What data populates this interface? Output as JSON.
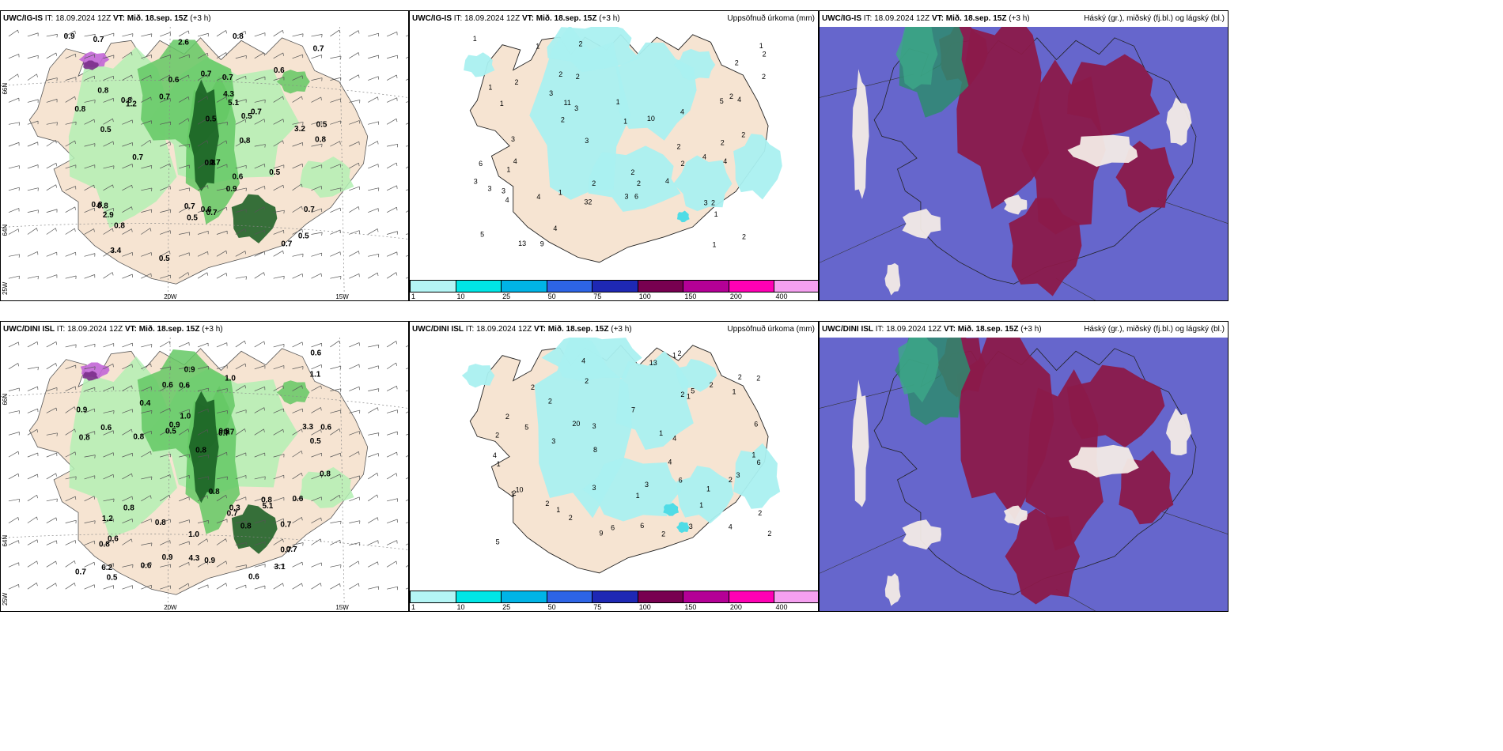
{
  "rows": [
    {
      "model_name": "UWC/IG-IS",
      "it_label": "IT:",
      "it_value": "18.09.2024 12Z",
      "vt_label": "VT:",
      "vt_value": "Mið. 18.sep. 15Z",
      "lead": "(+3 h)",
      "wind_panel": {
        "values": [
          "0.9",
          "0.6",
          "0.8",
          "0.5",
          "0.7",
          "0.8",
          "0.7",
          "0.6",
          "0.8",
          "0.7",
          "0.9",
          "1.2",
          "0.8",
          "0.6",
          "0.7",
          "0.8",
          "4.3",
          "0.8",
          "0.7",
          "0.5",
          "0.8",
          "0.7",
          "0.5",
          "0.7",
          "0.5",
          "0.7",
          "0.5",
          "0.8",
          "0.7",
          "5.1",
          "3.4",
          "0.7",
          "0.8",
          "2.9",
          "2.6",
          "3.2",
          "0.5",
          "0.7",
          "0.5",
          "0.7",
          "0.8",
          "0.5",
          "0.6"
        ],
        "lat_labels": [
          "66N",
          "64N",
          "25W"
        ],
        "lon_labels": [
          "20W",
          "15W"
        ]
      },
      "precip_panel": {
        "title_right": "Uppsöfnuð úrkoma (mm)",
        "values": [
          "1",
          "1",
          "1",
          "2",
          "2",
          "1",
          "1",
          "1",
          "2",
          "2",
          "2",
          "1",
          "3",
          "3",
          "2",
          "2",
          "3",
          "3",
          "4",
          "3",
          "4",
          "2",
          "4",
          "9",
          "4",
          "2",
          "1",
          "3",
          "2",
          "6",
          "13",
          "2",
          "1",
          "4",
          "2",
          "10",
          "2",
          "11",
          "4",
          "5",
          "3",
          "2",
          "1",
          "3",
          "2",
          "5",
          "2",
          "4",
          "3",
          "32",
          "2",
          "1",
          "4",
          "6",
          "2",
          "4"
        ]
      },
      "cloud_panel": {
        "title_right": "Háský (gr.), miðský (fj.bl.) og lágský (bl.)"
      }
    },
    {
      "model_name": "UWC/DINI ISL",
      "it_label": "IT:",
      "it_value": "18.09.2024 12Z",
      "vt_label": "VT:",
      "vt_value": "Mið. 18.sep. 15Z",
      "lead": "(+3 h)",
      "wind_panel": {
        "values": [
          "0.6",
          "0.8",
          "0.8",
          "0.6",
          "0.8",
          "1.2",
          "0.3",
          "0.9",
          "0.8",
          "0.7",
          "0.8",
          "0.6",
          "0.9",
          "0.7",
          "1.0",
          "0.5",
          "0.8",
          "0.9",
          "1.1",
          "0.6",
          "0.8",
          "0.7",
          "0.7",
          "1.0",
          "5.1",
          "0.8",
          "3.1",
          "3.3",
          "1.0",
          "0.4",
          "4.3",
          "0.8",
          "0.6",
          "0.6",
          "0.6",
          "0.6",
          "6.2",
          "0.5",
          "0.9",
          "0.9",
          "0.8",
          "0.7",
          "0.5",
          "0.7",
          "0.6",
          "0.7",
          "0.8"
        ],
        "lat_labels": [
          "66N",
          "64N",
          "25W"
        ],
        "lon_labels": [
          "20W",
          "15W"
        ]
      },
      "precip_panel": {
        "title_right": "Uppsöfnuð úrkoma (mm)",
        "values": [
          "1",
          "1",
          "1",
          "2",
          "1",
          "2",
          "2",
          "1",
          "2",
          "1",
          "2",
          "1",
          "2",
          "2",
          "3",
          "3",
          "2",
          "2",
          "4",
          "5",
          "2",
          "4",
          "4",
          "6",
          "13",
          "4",
          "2",
          "1",
          "8",
          "1",
          "5",
          "2",
          "2",
          "10",
          "6",
          "3",
          "2",
          "3",
          "20",
          "7",
          "1",
          "9",
          "6",
          "6",
          "6",
          "5",
          "3",
          "2",
          "2",
          "3",
          "2",
          "1",
          "4"
        ]
      },
      "cloud_panel": {
        "title_right": "Háský (gr.), miðský (fj.bl.) og lágský (bl.)"
      }
    }
  ],
  "legend": {
    "ticks": [
      "1",
      "10",
      "25",
      "50",
      "75",
      "100",
      "150",
      "200",
      "400"
    ],
    "colors": [
      "#b4f5f5",
      "#00e6e6",
      "#00b4e6",
      "#2d64e6",
      "#1e28b4",
      "#780050",
      "#b40096",
      "#ff00b4",
      "#f5a0f0"
    ]
  },
  "colors": {
    "land": "#f6e4d2",
    "sea": "#ffffff",
    "precip_light": "#aaf0f0",
    "precip_mid": "#50dce6",
    "green_light": "#b4f0b4",
    "green_mid": "#64c864",
    "green_dark": "#145a1e",
    "cloud_sea": "#6666cc",
    "cloud_high": "#8b1a4a",
    "cloud_mid_green": "#2e8b6e"
  }
}
